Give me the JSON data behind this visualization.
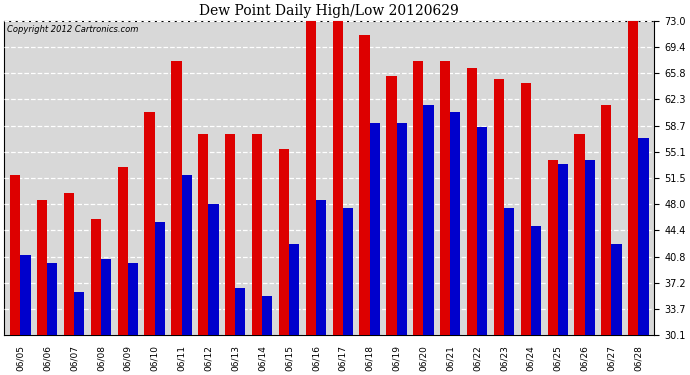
{
  "title": "Dew Point Daily High/Low 20120629",
  "copyright": "Copyright 2012 Cartronics.com",
  "dates": [
    "06/05",
    "06/06",
    "06/07",
    "06/08",
    "06/09",
    "06/10",
    "06/11",
    "06/12",
    "06/13",
    "06/14",
    "06/15",
    "06/16",
    "06/17",
    "06/18",
    "06/19",
    "06/20",
    "06/21",
    "06/22",
    "06/23",
    "06/24",
    "06/25",
    "06/26",
    "06/27",
    "06/28"
  ],
  "highs": [
    52.0,
    48.5,
    49.5,
    46.0,
    53.0,
    60.5,
    67.5,
    57.5,
    57.5,
    57.5,
    55.5,
    73.0,
    73.0,
    71.0,
    65.5,
    67.5,
    67.5,
    66.5,
    65.0,
    64.5,
    54.0,
    57.5,
    61.5,
    73.0
  ],
  "lows": [
    41.0,
    40.0,
    36.0,
    40.5,
    40.0,
    45.5,
    52.0,
    48.0,
    36.5,
    35.5,
    42.5,
    48.5,
    47.5,
    59.0,
    59.0,
    61.5,
    60.5,
    58.5,
    47.5,
    45.0,
    53.5,
    54.0,
    42.5,
    57.0
  ],
  "high_color": "#dd0000",
  "low_color": "#0000cc",
  "bg_color": "#ffffff",
  "plot_bg": "#d8d8d8",
  "grid_color": "#ffffff",
  "yticks": [
    30.1,
    33.7,
    37.2,
    40.8,
    44.4,
    48.0,
    51.5,
    55.1,
    58.7,
    62.3,
    65.8,
    69.4,
    73.0
  ],
  "ymin": 30.1,
  "ymax": 73.0,
  "bar_width": 0.38,
  "figwidth": 6.9,
  "figheight": 3.75,
  "dpi": 100
}
